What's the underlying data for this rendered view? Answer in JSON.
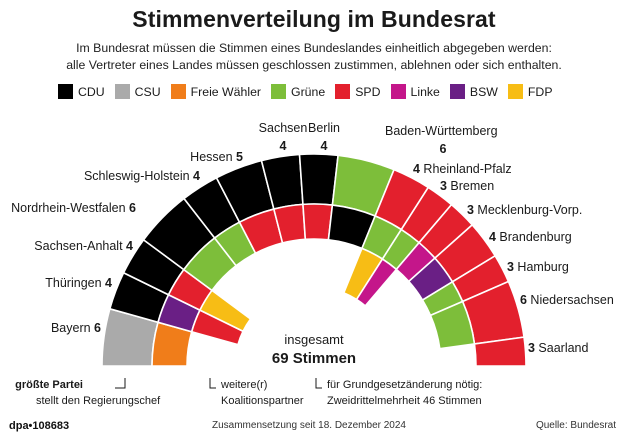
{
  "title": "Stimmenverteilung im Bundesrat",
  "subtitle_line1": "Im Bundesrat müssen die Stimmen eines Bundeslandes einheitlich abgegeben werden:",
  "subtitle_line2": "alle Vertreter eines Landes müssen geschlossen zustimmen, ablehnen oder sich enthalten.",
  "legend": [
    {
      "label": "CDU",
      "color": "#000000"
    },
    {
      "label": "CSU",
      "color": "#aaaaaa"
    },
    {
      "label": "Freie Wähler",
      "color": "#f07d1a"
    },
    {
      "label": "Grüne",
      "color": "#7dbe3a"
    },
    {
      "label": "SPD",
      "color": "#e3202d"
    },
    {
      "label": "Linke",
      "color": "#c4168a"
    },
    {
      "label": "BSW",
      "color": "#6a1f85"
    },
    {
      "label": "FDP",
      "color": "#f7bd15"
    }
  ],
  "center": {
    "line1": "insgesamt",
    "line2": "69 Stimmen"
  },
  "annotations": {
    "biggest_bold": "größte Partei",
    "biggest_rest": "stellt den Regierungschef",
    "partner_1": "weitere(r)",
    "partner_2": "Koalitionspartner",
    "constitution_1": "für Grundgesetzänderung nötig:",
    "constitution_2": "Zweidrittelmehrheit 46 Stimmen"
  },
  "footer": {
    "left": "dpa•108683",
    "middle": "Zusammensetzung seit 18. Dezember 2024",
    "right": "Quelle: Bundesrat"
  },
  "chart_data": {
    "type": "parliament-semicircle",
    "total_seats": 69,
    "rings": [
      "größte Partei",
      "weitere(r) Koalitionspartner",
      "weitere(r) Koalitionspartner"
    ],
    "states": [
      {
        "name": "Bayern",
        "votes": 6,
        "parties": [
          "CSU",
          "Freie Wähler"
        ]
      },
      {
        "name": "Thüringen",
        "votes": 4,
        "parties": [
          "CDU",
          "BSW",
          "SPD"
        ]
      },
      {
        "name": "Sachsen-Anhalt",
        "votes": 4,
        "parties": [
          "CDU",
          "SPD",
          "FDP"
        ]
      },
      {
        "name": "Nordrhein-Westfalen",
        "votes": 6,
        "parties": [
          "CDU",
          "Grüne"
        ]
      },
      {
        "name": "Schleswig-Holstein",
        "votes": 4,
        "parties": [
          "CDU",
          "Grüne"
        ]
      },
      {
        "name": "Hessen",
        "votes": 5,
        "parties": [
          "CDU",
          "SPD"
        ]
      },
      {
        "name": "Sachsen",
        "votes": 4,
        "parties": [
          "CDU",
          "SPD"
        ]
      },
      {
        "name": "Berlin",
        "votes": 4,
        "parties": [
          "CDU",
          "SPD"
        ]
      },
      {
        "name": "Baden-Württemberg",
        "votes": 6,
        "parties": [
          "Grüne",
          "CDU"
        ]
      },
      {
        "name": "Rheinland-Pfalz",
        "votes": 4,
        "parties": [
          "SPD",
          "Grüne",
          "FDP"
        ]
      },
      {
        "name": "Bremen",
        "votes": 3,
        "parties": [
          "SPD",
          "Grüne",
          "Linke"
        ]
      },
      {
        "name": "Mecklenburg-Vorp.",
        "votes": 3,
        "parties": [
          "SPD",
          "Linke"
        ]
      },
      {
        "name": "Brandenburg",
        "votes": 4,
        "parties": [
          "SPD",
          "BSW"
        ]
      },
      {
        "name": "Hamburg",
        "votes": 3,
        "parties": [
          "SPD",
          "Grüne"
        ]
      },
      {
        "name": "Niedersachsen",
        "votes": 6,
        "parties": [
          "SPD",
          "Grüne"
        ]
      },
      {
        "name": "Saarland",
        "votes": 3,
        "parties": [
          "SPD"
        ]
      }
    ]
  }
}
